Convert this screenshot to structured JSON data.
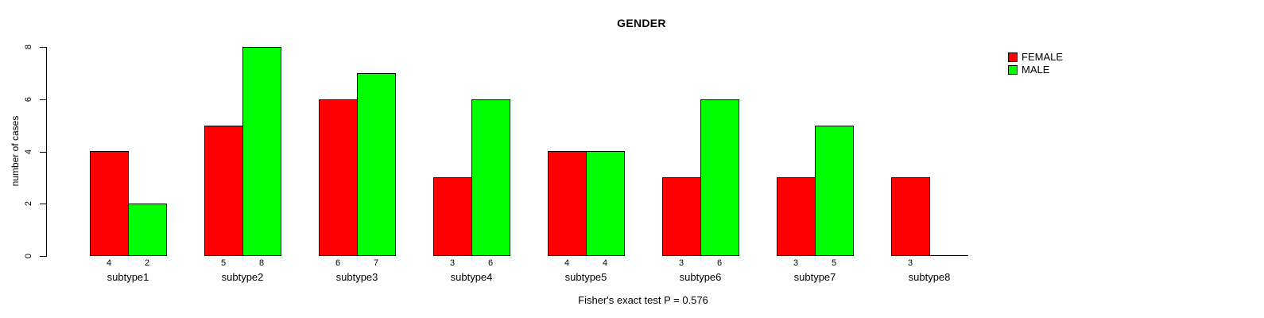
{
  "title": "GENDER",
  "caption": "Fisher's exact test P = 0.576",
  "chart_data": {
    "type": "bar",
    "title": "GENDER",
    "xlabel": "",
    "ylabel": "number of cases",
    "categories": [
      "subtype1",
      "subtype2",
      "subtype3",
      "subtype4",
      "subtype5",
      "subtype6",
      "subtype7",
      "subtype8"
    ],
    "series": [
      {
        "name": "FEMALE",
        "color": "#ff0000",
        "values": [
          4,
          5,
          6,
          3,
          4,
          3,
          3,
          3
        ]
      },
      {
        "name": "MALE",
        "color": "#00ff00",
        "values": [
          2,
          8,
          7,
          6,
          4,
          6,
          5,
          0
        ]
      }
    ],
    "yticks": [
      0,
      2,
      4,
      6,
      8
    ],
    "ylim": [
      0,
      8
    ],
    "bar_value_labels": true,
    "grid": false,
    "legend_position": "top-right",
    "caption": "Fisher's exact test P = 0.576"
  }
}
